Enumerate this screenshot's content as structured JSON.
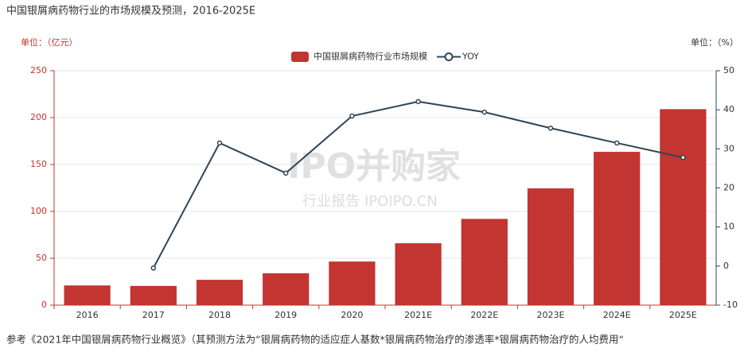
{
  "chart_data": {
    "type": "bar-line",
    "title": "中国银屑病药物行业的市场规模及预测，2016-2025E",
    "y_unit": "单位：（亿元）",
    "y2_unit": "单位：（%）",
    "categories": [
      "2016",
      "2017",
      "2018",
      "2019",
      "2020",
      "2021E",
      "2022E",
      "2023E",
      "2024E",
      "2025E"
    ],
    "series": [
      {
        "name": "中国银屑病药物行业市场规模",
        "type": "bar",
        "color": "#c23531",
        "values": [
          21,
          20.5,
          27,
          34,
          46.5,
          66,
          92,
          124.5,
          163.5,
          209
        ]
      },
      {
        "name": "YOY",
        "type": "line",
        "axis": "y2",
        "color": "#2f4554",
        "values": [
          null,
          -0.5,
          31.5,
          23.8,
          38.4,
          42.1,
          39.4,
          35.3,
          31.5,
          27.8
        ]
      }
    ],
    "ylim": [
      0,
      250
    ],
    "yticks": [
      0,
      50,
      100,
      150,
      200,
      250
    ],
    "y2lim": [
      -10,
      50
    ],
    "y2ticks": [
      -10,
      0,
      10,
      20,
      30,
      40,
      50
    ],
    "grid": true,
    "legend": "top",
    "watermark": [
      "IPO并购家",
      "行业报告 IPOIPO.CN"
    ],
    "note": "参考《2021年中国银屑病药物行业概览》（其预测方法为“银屑病药物的适应症人基数*银屑病药物治疗的渗透率*银屑病药物治疗的人均费用“"
  }
}
